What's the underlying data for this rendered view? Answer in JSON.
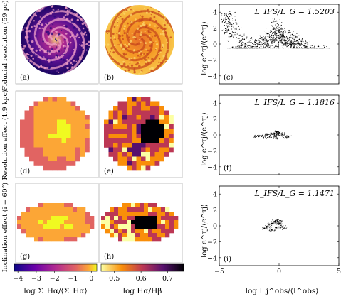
{
  "row_labels": [
    "Fiducial resolution (59 pc)",
    "Resolution effect (1.9 kpc)",
    "Inclination effect (i = 60°)"
  ],
  "map_panel_labels": [
    "(a)",
    "(b)",
    "(d)",
    "(e)",
    "(g)",
    "(h)"
  ],
  "colorbars": [
    {
      "label": "log Σ_Hα/⟨Σ_Hα⟩",
      "ticks": [
        "−4",
        "−3",
        "−2",
        "−1",
        "0"
      ],
      "range": [
        -4.2,
        0.3
      ],
      "colormap": "plasma"
    },
    {
      "label": "log Hα/Hβ",
      "ticks": [
        "0.5",
        "0.6",
        "0.7"
      ],
      "range": [
        0.45,
        0.76
      ],
      "colormap": "inferno_r"
    }
  ],
  "chart_data": [
    {
      "type": "scatter",
      "panel_label": "(c)",
      "annotation": "L_IFS/L_G = 1.5203",
      "xlabel": "log I_j^obs/⟨I^obs⟩",
      "ylabel": "log e^τj/⟨e^τj⟩",
      "xlim": [
        -5,
        5
      ],
      "ylim": [
        -5,
        5
      ],
      "xticks": [
        "−5",
        "0",
        "5"
      ],
      "yticks": [
        "−4",
        "−2",
        "0",
        "2",
        "4"
      ],
      "density": "dense",
      "points": [
        [
          -3.9,
          -0.4
        ],
        [
          -3.5,
          -0.5
        ],
        [
          -3.2,
          -0.4
        ],
        [
          -2.8,
          -0.3
        ],
        [
          -2.5,
          -0.2
        ],
        [
          -2.2,
          0.1
        ],
        [
          -1.9,
          0.4
        ],
        [
          -1.6,
          0.7
        ],
        [
          -1.3,
          1.0
        ],
        [
          -1.0,
          1.3
        ],
        [
          -0.7,
          1.7
        ],
        [
          -0.4,
          2.0
        ],
        [
          -0.1,
          2.2
        ],
        [
          0.2,
          2.0
        ],
        [
          0.5,
          1.7
        ],
        [
          0.8,
          1.4
        ],
        [
          1.1,
          1.2
        ],
        [
          1.4,
          0.9
        ],
        [
          1.7,
          0.6
        ],
        [
          2.0,
          0.3
        ],
        [
          2.4,
          0.0
        ],
        [
          2.8,
          -0.2
        ],
        [
          3.3,
          -0.3
        ],
        [
          3.8,
          -0.4
        ],
        [
          -4.4,
          3.6
        ],
        [
          -4.1,
          3.8
        ],
        [
          -3.6,
          2.7
        ],
        [
          -3.2,
          1.1
        ],
        [
          -2.9,
          0.6
        ],
        [
          -2.3,
          0.8
        ],
        [
          -0.2,
          2.9
        ],
        [
          0.3,
          1.0
        ],
        [
          0.9,
          0.6
        ],
        [
          1.5,
          0.4
        ],
        [
          -1.0,
          0.3
        ],
        [
          -0.5,
          0.5
        ],
        [
          0.0,
          0.7
        ],
        [
          -1.8,
          -0.3
        ],
        [
          1.9,
          -0.1
        ],
        [
          2.6,
          -0.4
        ],
        [
          -4.2,
          2.2
        ]
      ]
    },
    {
      "type": "scatter",
      "panel_label": "(f)",
      "annotation": "L_IFS/L_G = 1.1816",
      "xlabel": "log I_j^obs/⟨I^obs⟩",
      "ylabel": "log e^τj/⟨e^τj⟩",
      "xlim": [
        -5,
        5
      ],
      "ylim": [
        -5,
        5
      ],
      "xticks": [
        "−5",
        "0",
        "5"
      ],
      "yticks": [
        "−4",
        "−2",
        "0",
        "2",
        "4"
      ],
      "density": "sparse",
      "points": [
        [
          -1.9,
          -0.2
        ],
        [
          -1.6,
          -0.1
        ],
        [
          -1.3,
          -0.3
        ],
        [
          -1.0,
          0.0
        ],
        [
          -0.8,
          -0.2
        ],
        [
          -0.6,
          0.1
        ],
        [
          -0.4,
          0.2
        ],
        [
          -0.2,
          0.0
        ],
        [
          0.0,
          0.3
        ],
        [
          0.2,
          0.1
        ],
        [
          0.4,
          -0.1
        ],
        [
          0.6,
          -0.3
        ],
        [
          0.8,
          -0.2
        ],
        [
          -0.3,
          -0.4
        ],
        [
          -0.1,
          0.4
        ]
      ]
    },
    {
      "type": "scatter",
      "panel_label": "(i)",
      "annotation": "L_IFS/L_G = 1.1471",
      "xlabel": "log I_j^obs/⟨I^obs⟩",
      "ylabel": "log e^τj/⟨e^τj⟩",
      "xlim": [
        -5,
        5
      ],
      "ylim": [
        -5,
        5
      ],
      "xticks": [
        "−5",
        "0",
        "5"
      ],
      "yticks": [
        "−4",
        "−2",
        "0",
        "2",
        "4"
      ],
      "density": "sparse",
      "points": [
        [
          -1.2,
          -0.3
        ],
        [
          -0.9,
          -0.1
        ],
        [
          -0.7,
          0.2
        ],
        [
          -0.5,
          0.4
        ],
        [
          -0.3,
          0.6
        ],
        [
          -0.1,
          0.3
        ],
        [
          0.1,
          0.1
        ],
        [
          0.3,
          -0.1
        ],
        [
          0.5,
          -0.3
        ],
        [
          -0.6,
          -0.5
        ],
        [
          -0.2,
          -0.2
        ],
        [
          0.0,
          0.5
        ]
      ]
    }
  ]
}
